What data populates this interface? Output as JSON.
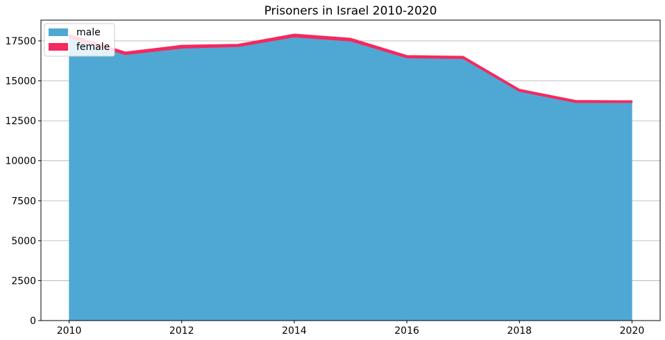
{
  "chart_data": {
    "type": "area",
    "stacked": true,
    "title": "Prisoners in Israel 2010-2020",
    "xlabel": "",
    "ylabel": "",
    "x": [
      2010,
      2011,
      2012,
      2013,
      2014,
      2015,
      2016,
      2017,
      2018,
      2019,
      2020
    ],
    "series": [
      {
        "name": "male",
        "color": "#4fa8d3",
        "values": [
          17700,
          16650,
          17050,
          17150,
          17750,
          17500,
          16450,
          16400,
          14350,
          13650,
          13650
        ]
      },
      {
        "name": "female",
        "color": "#f5285f",
        "values": [
          200,
          150,
          170,
          130,
          170,
          160,
          130,
          130,
          120,
          120,
          100
        ]
      }
    ],
    "xlim": [
      2009.5,
      2020.5
    ],
    "ylim": [
      0,
      18800
    ],
    "xticks": [
      2010,
      2012,
      2014,
      2016,
      2018,
      2020
    ],
    "yticks": [
      0,
      2500,
      5000,
      7500,
      10000,
      12500,
      15000,
      17500
    ],
    "grid": "y",
    "legend_position": "top-left"
  }
}
